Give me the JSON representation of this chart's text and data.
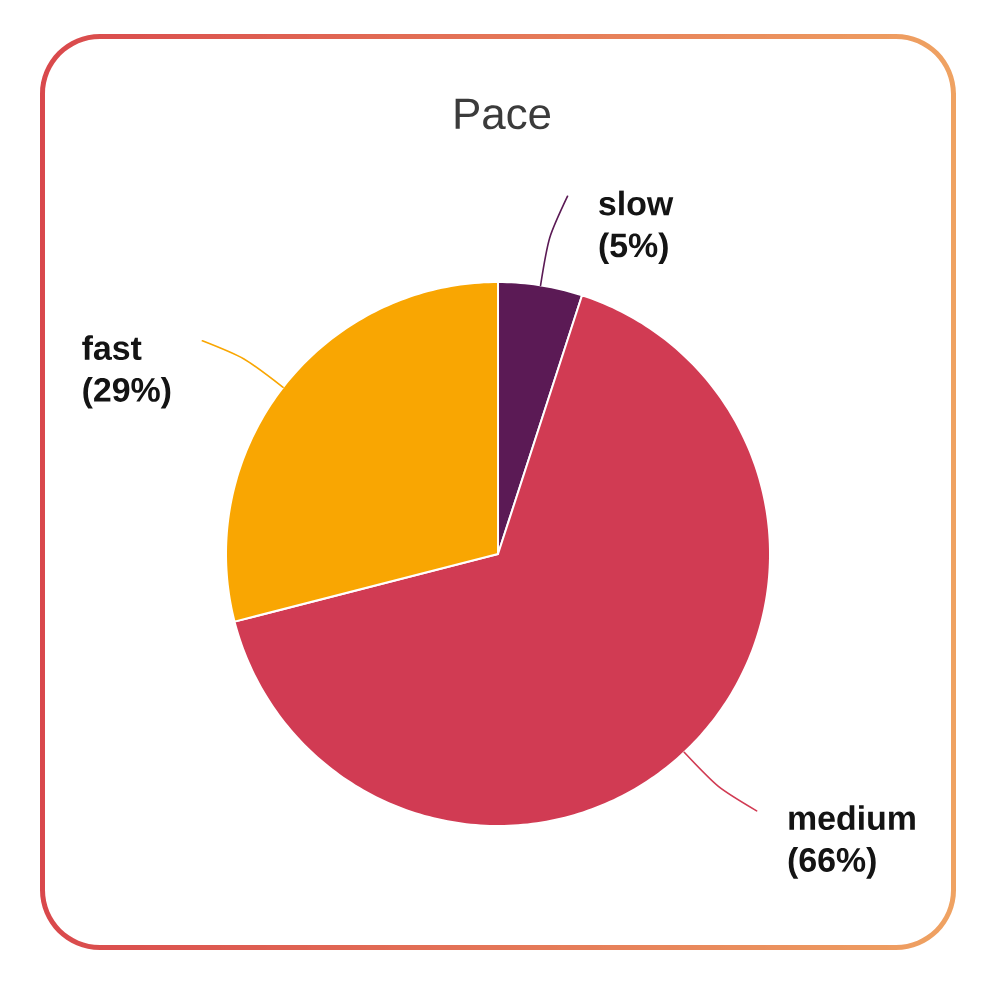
{
  "chart_data": {
    "type": "pie",
    "title": "Pace",
    "categories": [
      "slow",
      "medium",
      "fast"
    ],
    "values": [
      5,
      66,
      29
    ],
    "colors": [
      "#5b1a55",
      "#d13b53",
      "#f9a602"
    ],
    "value_labels": [
      "(5%)",
      "(66%)",
      "(29%)"
    ]
  }
}
